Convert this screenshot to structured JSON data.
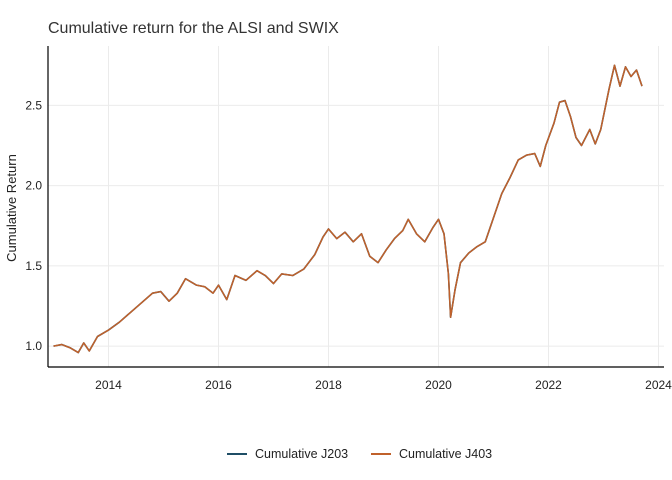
{
  "chart_data": {
    "type": "line",
    "title": "Cumulative return for the ALSI and SWIX",
    "xlabel": "",
    "ylabel": "Cumulative Return",
    "x_range": [
      2012.9,
      2024.1
    ],
    "y_range": [
      0.87,
      2.87
    ],
    "x_ticks": [
      2014,
      2016,
      2018,
      2020,
      2022,
      2024
    ],
    "x_tick_labels": [
      "2014",
      "2016",
      "2018",
      "2020",
      "2022",
      "2024"
    ],
    "y_ticks": [
      1.0,
      1.5,
      2.0,
      2.5
    ],
    "y_tick_labels": [
      "1.0",
      "1.5",
      "2.0",
      "2.5"
    ],
    "grid": true,
    "legend_position": "bottom",
    "series": [
      {
        "name": "Cumulative J203",
        "color": "#1f4e66",
        "points": [
          [
            2013.0,
            1.0
          ],
          [
            2013.15,
            1.01
          ],
          [
            2013.3,
            0.99
          ],
          [
            2013.45,
            0.96
          ],
          [
            2013.55,
            1.02
          ],
          [
            2013.65,
            0.97
          ],
          [
            2013.8,
            1.06
          ],
          [
            2014.0,
            1.1
          ],
          [
            2014.2,
            1.15
          ],
          [
            2014.4,
            1.21
          ],
          [
            2014.6,
            1.27
          ],
          [
            2014.8,
            1.33
          ],
          [
            2014.95,
            1.34
          ],
          [
            2015.1,
            1.28
          ],
          [
            2015.25,
            1.33
          ],
          [
            2015.4,
            1.42
          ],
          [
            2015.6,
            1.38
          ],
          [
            2015.75,
            1.37
          ],
          [
            2015.9,
            1.33
          ],
          [
            2016.0,
            1.38
          ],
          [
            2016.15,
            1.29
          ],
          [
            2016.3,
            1.44
          ],
          [
            2016.5,
            1.41
          ],
          [
            2016.7,
            1.47
          ],
          [
            2016.85,
            1.44
          ],
          [
            2017.0,
            1.39
          ],
          [
            2017.15,
            1.45
          ],
          [
            2017.35,
            1.44
          ],
          [
            2017.55,
            1.48
          ],
          [
            2017.75,
            1.57
          ],
          [
            2017.9,
            1.68
          ],
          [
            2018.0,
            1.73
          ],
          [
            2018.15,
            1.67
          ],
          [
            2018.3,
            1.71
          ],
          [
            2018.45,
            1.65
          ],
          [
            2018.6,
            1.7
          ],
          [
            2018.75,
            1.56
          ],
          [
            2018.9,
            1.52
          ],
          [
            2019.05,
            1.6
          ],
          [
            2019.2,
            1.67
          ],
          [
            2019.35,
            1.72
          ],
          [
            2019.45,
            1.79
          ],
          [
            2019.6,
            1.7
          ],
          [
            2019.75,
            1.65
          ],
          [
            2019.9,
            1.74
          ],
          [
            2020.0,
            1.79
          ],
          [
            2020.1,
            1.7
          ],
          [
            2020.18,
            1.45
          ],
          [
            2020.22,
            1.18
          ],
          [
            2020.3,
            1.35
          ],
          [
            2020.4,
            1.52
          ],
          [
            2020.55,
            1.58
          ],
          [
            2020.7,
            1.62
          ],
          [
            2020.85,
            1.65
          ],
          [
            2021.0,
            1.8
          ],
          [
            2021.15,
            1.95
          ],
          [
            2021.3,
            2.05
          ],
          [
            2021.45,
            2.16
          ],
          [
            2021.6,
            2.19
          ],
          [
            2021.75,
            2.2
          ],
          [
            2021.85,
            2.12
          ],
          [
            2021.95,
            2.25
          ],
          [
            2022.1,
            2.39
          ],
          [
            2022.2,
            2.52
          ],
          [
            2022.3,
            2.53
          ],
          [
            2022.4,
            2.43
          ],
          [
            2022.5,
            2.3
          ],
          [
            2022.6,
            2.25
          ],
          [
            2022.75,
            2.35
          ],
          [
            2022.85,
            2.26
          ],
          [
            2022.95,
            2.35
          ],
          [
            2023.1,
            2.6
          ],
          [
            2023.2,
            2.75
          ],
          [
            2023.3,
            2.62
          ],
          [
            2023.4,
            2.74
          ],
          [
            2023.5,
            2.68
          ],
          [
            2023.6,
            2.72
          ],
          [
            2023.7,
            2.62
          ]
        ]
      },
      {
        "name": "Cumulative J403",
        "color": "#c0612b",
        "points": [
          [
            2013.0,
            1.0
          ],
          [
            2013.15,
            1.01
          ],
          [
            2013.3,
            0.99
          ],
          [
            2013.45,
            0.96
          ],
          [
            2013.55,
            1.02
          ],
          [
            2013.65,
            0.97
          ],
          [
            2013.8,
            1.06
          ],
          [
            2014.0,
            1.1
          ],
          [
            2014.2,
            1.15
          ],
          [
            2014.4,
            1.21
          ],
          [
            2014.6,
            1.27
          ],
          [
            2014.8,
            1.33
          ],
          [
            2014.95,
            1.34
          ],
          [
            2015.1,
            1.28
          ],
          [
            2015.25,
            1.33
          ],
          [
            2015.4,
            1.42
          ],
          [
            2015.6,
            1.38
          ],
          [
            2015.75,
            1.37
          ],
          [
            2015.9,
            1.33
          ],
          [
            2016.0,
            1.38
          ],
          [
            2016.15,
            1.29
          ],
          [
            2016.3,
            1.44
          ],
          [
            2016.5,
            1.41
          ],
          [
            2016.7,
            1.47
          ],
          [
            2016.85,
            1.44
          ],
          [
            2017.0,
            1.39
          ],
          [
            2017.15,
            1.45
          ],
          [
            2017.35,
            1.44
          ],
          [
            2017.55,
            1.48
          ],
          [
            2017.75,
            1.57
          ],
          [
            2017.9,
            1.68
          ],
          [
            2018.0,
            1.73
          ],
          [
            2018.15,
            1.67
          ],
          [
            2018.3,
            1.71
          ],
          [
            2018.45,
            1.65
          ],
          [
            2018.6,
            1.7
          ],
          [
            2018.75,
            1.56
          ],
          [
            2018.9,
            1.52
          ],
          [
            2019.05,
            1.6
          ],
          [
            2019.2,
            1.67
          ],
          [
            2019.35,
            1.72
          ],
          [
            2019.45,
            1.79
          ],
          [
            2019.6,
            1.7
          ],
          [
            2019.75,
            1.65
          ],
          [
            2019.9,
            1.74
          ],
          [
            2020.0,
            1.79
          ],
          [
            2020.1,
            1.7
          ],
          [
            2020.18,
            1.45
          ],
          [
            2020.22,
            1.18
          ],
          [
            2020.3,
            1.35
          ],
          [
            2020.4,
            1.52
          ],
          [
            2020.55,
            1.58
          ],
          [
            2020.7,
            1.62
          ],
          [
            2020.85,
            1.65
          ],
          [
            2021.0,
            1.8
          ],
          [
            2021.15,
            1.95
          ],
          [
            2021.3,
            2.05
          ],
          [
            2021.45,
            2.16
          ],
          [
            2021.6,
            2.19
          ],
          [
            2021.75,
            2.2
          ],
          [
            2021.85,
            2.12
          ],
          [
            2021.95,
            2.25
          ],
          [
            2022.1,
            2.39
          ],
          [
            2022.2,
            2.52
          ],
          [
            2022.3,
            2.53
          ],
          [
            2022.4,
            2.43
          ],
          [
            2022.5,
            2.3
          ],
          [
            2022.6,
            2.25
          ],
          [
            2022.75,
            2.35
          ],
          [
            2022.85,
            2.26
          ],
          [
            2022.95,
            2.35
          ],
          [
            2023.1,
            2.6
          ],
          [
            2023.2,
            2.75
          ],
          [
            2023.3,
            2.62
          ],
          [
            2023.4,
            2.74
          ],
          [
            2023.5,
            2.68
          ],
          [
            2023.6,
            2.72
          ],
          [
            2023.7,
            2.62
          ]
        ]
      }
    ]
  }
}
